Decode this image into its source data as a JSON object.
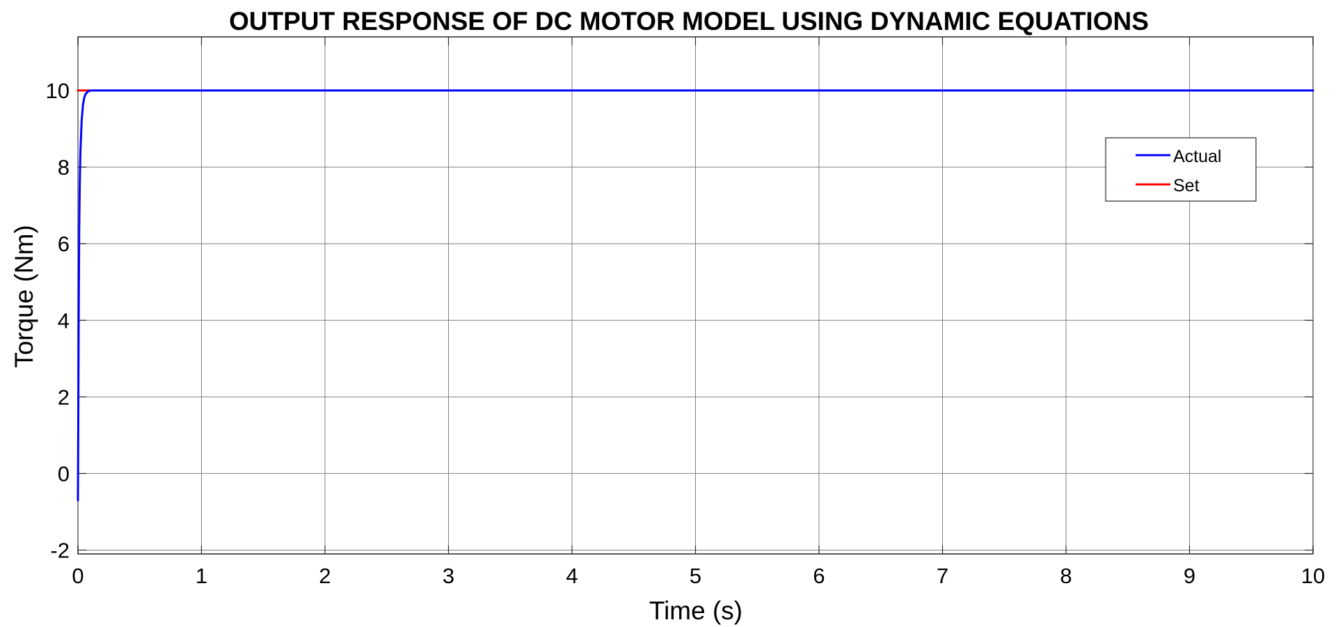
{
  "chart_data": {
    "type": "line",
    "title": "OUTPUT RESPONSE OF DC MOTOR MODEL USING DYNAMIC EQUATIONS",
    "xlabel": "Time (s)",
    "ylabel": "Torque (Nm)",
    "xlim": [
      0,
      10
    ],
    "ylim": [
      -2.1,
      11.4
    ],
    "xticks": [
      0,
      1,
      2,
      3,
      4,
      5,
      6,
      7,
      8,
      9,
      10
    ],
    "yticks": [
      -2,
      0,
      2,
      4,
      6,
      8,
      10
    ],
    "grid": true,
    "legend_position": "top-right",
    "series": [
      {
        "name": "Actual",
        "color": "#0000ff",
        "x": [
          0,
          0.003,
          0.006,
          0.01,
          0.015,
          0.02,
          0.03,
          0.04,
          0.05,
          0.06,
          0.08,
          0.1,
          10
        ],
        "y": [
          -0.7,
          1.5,
          4.0,
          6.3,
          7.6,
          8.4,
          9.2,
          9.6,
          9.8,
          9.9,
          9.97,
          10.0,
          10.0
        ]
      },
      {
        "name": "Set",
        "color": "#ff0000",
        "x": [
          0,
          10
        ],
        "y": [
          10,
          10
        ]
      }
    ]
  }
}
